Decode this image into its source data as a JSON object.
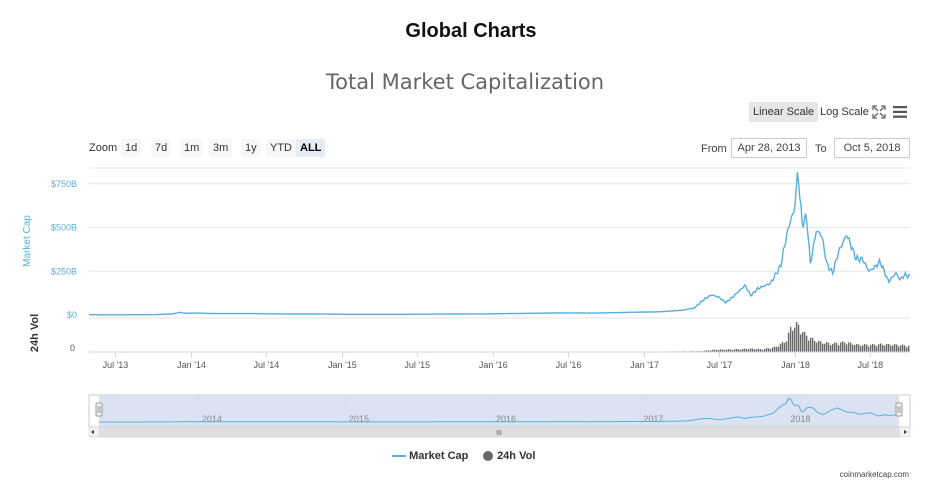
{
  "header": {
    "page_title": "Global Charts"
  },
  "toolbar": {
    "linear_scale": "Linear Scale",
    "log_scale": "Log Scale",
    "fullscreen_icon": "expand-icon",
    "menu_icon": "hamburger-icon"
  },
  "range_selector": {
    "zoom_label": "Zoom",
    "buttons": [
      "1d",
      "7d",
      "1m",
      "3m",
      "1y",
      "YTD",
      "ALL"
    ],
    "selected": "ALL",
    "from_label": "From",
    "from_value": "Apr 28, 2013",
    "to_label": "To",
    "to_value": "Oct 5, 2018"
  },
  "navigator": {
    "year_labels": [
      "2014",
      "2015",
      "2016",
      "2017",
      "2018"
    ],
    "scrollbar_grip": "III"
  },
  "footer": {
    "credit": "coinmarketcap.com"
  },
  "colors": {
    "market_cap_line": "#5aaede",
    "volume_bars": "#666666",
    "axis_label": "#5aaede",
    "navigator_mask": "#d5ddef"
  },
  "chart_data": {
    "type": "line",
    "title": "Total Market Capitalization",
    "ylabel": "Market Cap",
    "y2label": "24h Vol",
    "yticks": [
      "$0",
      "$250B",
      "$500B",
      "$750B"
    ],
    "ylim": [
      0,
      840
    ],
    "y2ticks": [
      "0"
    ],
    "xticks": [
      "Jul '13",
      "Jan '14",
      "Jul '14",
      "Jan '15",
      "Jul '15",
      "Jan '16",
      "Jul '16",
      "Jan '17",
      "Jul '17",
      "Jan '18",
      "Jul '18"
    ],
    "xrange": [
      "2013-04-28",
      "2018-10-05"
    ],
    "legend": [
      "Market Cap",
      "24h Vol"
    ],
    "legend_position": "bottom-center",
    "grid": true,
    "series": [
      {
        "name": "Market Cap",
        "unit": "billion USD",
        "points": [
          [
            "2013-04-28",
            1.6
          ],
          [
            "2013-07-01",
            1.2
          ],
          [
            "2013-10-01",
            2.0
          ],
          [
            "2013-11-15",
            6
          ],
          [
            "2013-12-04",
            15
          ],
          [
            "2013-12-20",
            10
          ],
          [
            "2014-01-15",
            11
          ],
          [
            "2014-03-01",
            8
          ],
          [
            "2014-06-01",
            8
          ],
          [
            "2014-09-01",
            6
          ],
          [
            "2014-12-01",
            5
          ],
          [
            "2015-01-15",
            4
          ],
          [
            "2015-06-01",
            4
          ],
          [
            "2015-11-05",
            6
          ],
          [
            "2016-01-01",
            7
          ],
          [
            "2016-06-17",
            12
          ],
          [
            "2016-09-01",
            11
          ],
          [
            "2016-12-31",
            17
          ],
          [
            "2017-02-01",
            18
          ],
          [
            "2017-03-01",
            22
          ],
          [
            "2017-04-01",
            27
          ],
          [
            "2017-05-01",
            40
          ],
          [
            "2017-05-25",
            90
          ],
          [
            "2017-06-12",
            115
          ],
          [
            "2017-07-01",
            100
          ],
          [
            "2017-07-16",
            70
          ],
          [
            "2017-08-01",
            100
          ],
          [
            "2017-09-01",
            170
          ],
          [
            "2017-09-15",
            110
          ],
          [
            "2017-10-01",
            150
          ],
          [
            "2017-11-01",
            180
          ],
          [
            "2017-11-26",
            280
          ],
          [
            "2017-12-10",
            450
          ],
          [
            "2017-12-22",
            560
          ],
          [
            "2017-12-28",
            580
          ],
          [
            "2018-01-07",
            820
          ],
          [
            "2018-01-17",
            520
          ],
          [
            "2018-01-28",
            560
          ],
          [
            "2018-02-06",
            290
          ],
          [
            "2018-02-20",
            480
          ],
          [
            "2018-03-05",
            460
          ],
          [
            "2018-03-18",
            290
          ],
          [
            "2018-04-01",
            240
          ],
          [
            "2018-04-15",
            360
          ],
          [
            "2018-05-05",
            460
          ],
          [
            "2018-05-28",
            320
          ],
          [
            "2018-06-12",
            320
          ],
          [
            "2018-06-28",
            250
          ],
          [
            "2018-07-10",
            270
          ],
          [
            "2018-07-25",
            305
          ],
          [
            "2018-08-14",
            190
          ],
          [
            "2018-09-01",
            240
          ],
          [
            "2018-09-11",
            200
          ],
          [
            "2018-09-22",
            230
          ],
          [
            "2018-10-05",
            218
          ]
        ]
      },
      {
        "name": "24h Vol",
        "unit": "billion USD",
        "points": [
          [
            "2013-04-28",
            0.02
          ],
          [
            "2014-01-01",
            0.1
          ],
          [
            "2015-01-01",
            0.05
          ],
          [
            "2016-01-01",
            0.1
          ],
          [
            "2017-01-01",
            0.5
          ],
          [
            "2017-05-20",
            1.5
          ],
          [
            "2017-06-15",
            4
          ],
          [
            "2017-08-15",
            5
          ],
          [
            "2017-09-15",
            6
          ],
          [
            "2017-10-15",
            5
          ],
          [
            "2017-11-15",
            9
          ],
          [
            "2017-12-10",
            20
          ],
          [
            "2017-12-22",
            45
          ],
          [
            "2018-01-07",
            50
          ],
          [
            "2018-01-20",
            35
          ],
          [
            "2018-02-06",
            25
          ],
          [
            "2018-03-01",
            18
          ],
          [
            "2018-04-01",
            15
          ],
          [
            "2018-05-01",
            18
          ],
          [
            "2018-06-01",
            13
          ],
          [
            "2018-07-01",
            13
          ],
          [
            "2018-08-01",
            14
          ],
          [
            "2018-09-01",
            13
          ],
          [
            "2018-10-05",
            11
          ]
        ]
      }
    ]
  }
}
